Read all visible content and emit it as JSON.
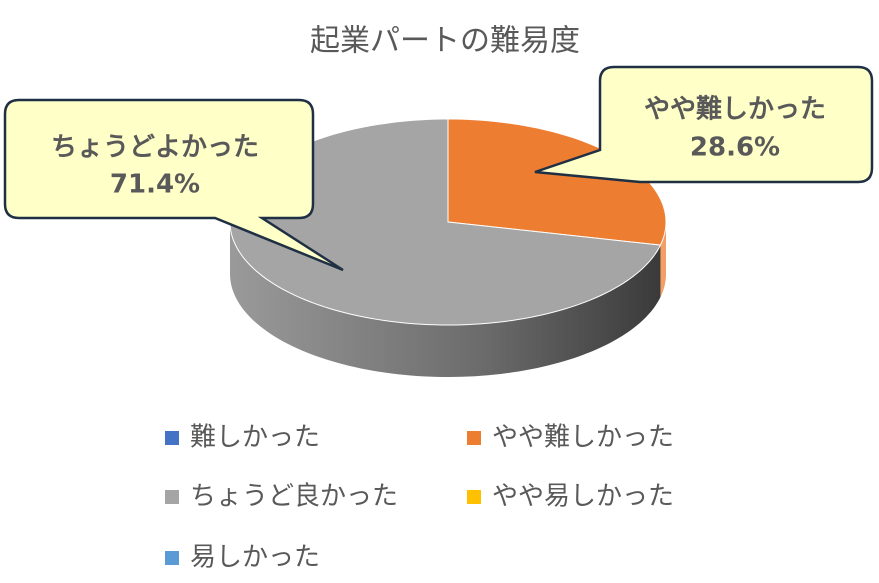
{
  "chart_data": {
    "type": "pie3d",
    "title": "起業パートの難易度",
    "categories": [
      "難しかった",
      "やや難しかった",
      "ちょうど良かった",
      "やや易しかった",
      "易しかった"
    ],
    "values": [
      0,
      28.6,
      71.4,
      0,
      0
    ],
    "value_labels": [
      null,
      "28.6%",
      "71.4%",
      null,
      null
    ],
    "callout_labels": [
      null,
      "やや難しかった",
      "ちょうどよかった",
      null,
      null
    ],
    "colors": [
      "#4472c4",
      "#ed7d31",
      "#a5a5a5",
      "#ffc000",
      "#5b9bd5"
    ],
    "legend": "bottom"
  }
}
